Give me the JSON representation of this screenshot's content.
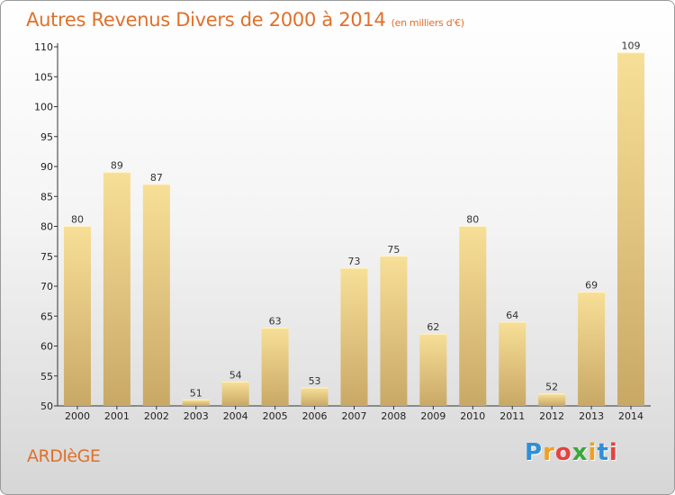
{
  "title": "Autres Revenus Divers de 2000 à 2014",
  "unit": "(en milliers d'€)",
  "town": "ARDIèGE",
  "brand": {
    "letters": [
      "P",
      "r",
      "o",
      "x",
      "i",
      "t",
      "i"
    ],
    "colors": [
      "#2e8fd6",
      "#f0a020",
      "#e84040",
      "#3aa83a",
      "#f0a020",
      "#2e8fd6",
      "#e84040"
    ]
  },
  "colors": {
    "bar_light": "#f7df97",
    "bar_dark": "#c9a866",
    "title": "#e0702a"
  },
  "chart_data": {
    "type": "bar",
    "categories": [
      "2000",
      "2001",
      "2002",
      "2003",
      "2004",
      "2005",
      "2006",
      "2007",
      "2008",
      "2009",
      "2010",
      "2011",
      "2012",
      "2013",
      "2014"
    ],
    "values": [
      80,
      89,
      87,
      51,
      54,
      63,
      53,
      73,
      75,
      62,
      80,
      64,
      52,
      69,
      109
    ],
    "ylim": [
      50,
      110
    ],
    "yticks": [
      50,
      55,
      60,
      65,
      70,
      75,
      80,
      85,
      90,
      95,
      100,
      105,
      110
    ],
    "grid": false
  }
}
